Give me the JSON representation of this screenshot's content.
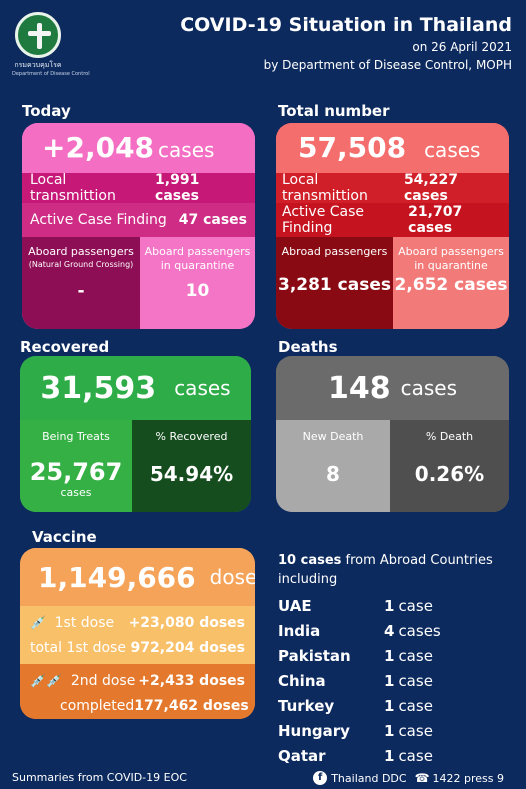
{
  "header": {
    "logo_text": "กรมควบคุมโรค",
    "logo_subtext": "Department of Disease Control",
    "title": "COVID-19 Situation in Thailand",
    "date_line": "on  26 April 2021",
    "source_line": "by Department of Disease Control, MOPH"
  },
  "today": {
    "section_label": "Today",
    "total": "+2,048",
    "total_unit": "cases",
    "local_label": "Local transmittion",
    "local_value": "1,991 cases",
    "acf_label": "Active Case Finding",
    "acf_value": "47 cases",
    "abroad_label": "Aboard passengers",
    "abroad_sub": "(Natural Ground Crossing)",
    "abroad_value": "-",
    "quarantine_label_1": "Aboard passengers",
    "quarantine_label_2": "in quarantine",
    "quarantine_value": "10"
  },
  "total": {
    "section_label": "Total number",
    "total": "57,508",
    "total_unit": "cases",
    "local_label": "Local transmittion",
    "local_value": "54,227 cases",
    "acf_label": "Active Case Finding",
    "acf_value": "21,707 cases",
    "abroad_label": "Abroad passengers",
    "abroad_value": "3,281 cases",
    "quarantine_label_1": "Aboard passengers",
    "quarantine_label_2": "in quarantine",
    "quarantine_value": "2,652 cases"
  },
  "recovered": {
    "section_label": "Recovered",
    "total": "31,593",
    "total_unit": "cases",
    "treats_label": "Being Treats",
    "treats_value": "25,767",
    "treats_unit": "cases",
    "pct_label": "% Recovered",
    "pct_value": "54.94%"
  },
  "deaths": {
    "section_label": "Deaths",
    "total": "148",
    "total_unit": "cases",
    "new_label": "New Death",
    "new_value": "8",
    "pct_label": "% Death",
    "pct_value": "0.26%"
  },
  "vaccine": {
    "section_label": "Vaccine",
    "total": "1,149,666",
    "total_unit": "doses",
    "dose1_label": "1st dose",
    "dose1_value": "+23,080 doses",
    "dose1_total_label": "total 1st dose",
    "dose1_total_value": "972,204 doses",
    "dose2_label": "2nd dose",
    "dose2_value": "+2,433 doses",
    "dose2_total_label": "completed",
    "dose2_total_value": "177,462 doses",
    "syringe_icon": "syringe-icon"
  },
  "abroad_countries": {
    "intro_bold": "10 cases",
    "intro_rest": " from Abroad Countries",
    "intro_line2": "including",
    "countries": [
      {
        "name": "UAE",
        "count": "1",
        "unit": "case"
      },
      {
        "name": "India",
        "count": "4",
        "unit": "cases"
      },
      {
        "name": "Pakistan",
        "count": "1",
        "unit": "case"
      },
      {
        "name": "China",
        "count": "1",
        "unit": "case"
      },
      {
        "name": "Turkey",
        "count": "1",
        "unit": "case"
      },
      {
        "name": "Hungary",
        "count": "1",
        "unit": "case"
      },
      {
        "name": "Qatar",
        "count": "1",
        "unit": "case"
      }
    ]
  },
  "footer": {
    "summary": "Summaries  from COVID-19 EOC",
    "facebook": "Thailand DDC",
    "phone": "1422 press 9"
  }
}
